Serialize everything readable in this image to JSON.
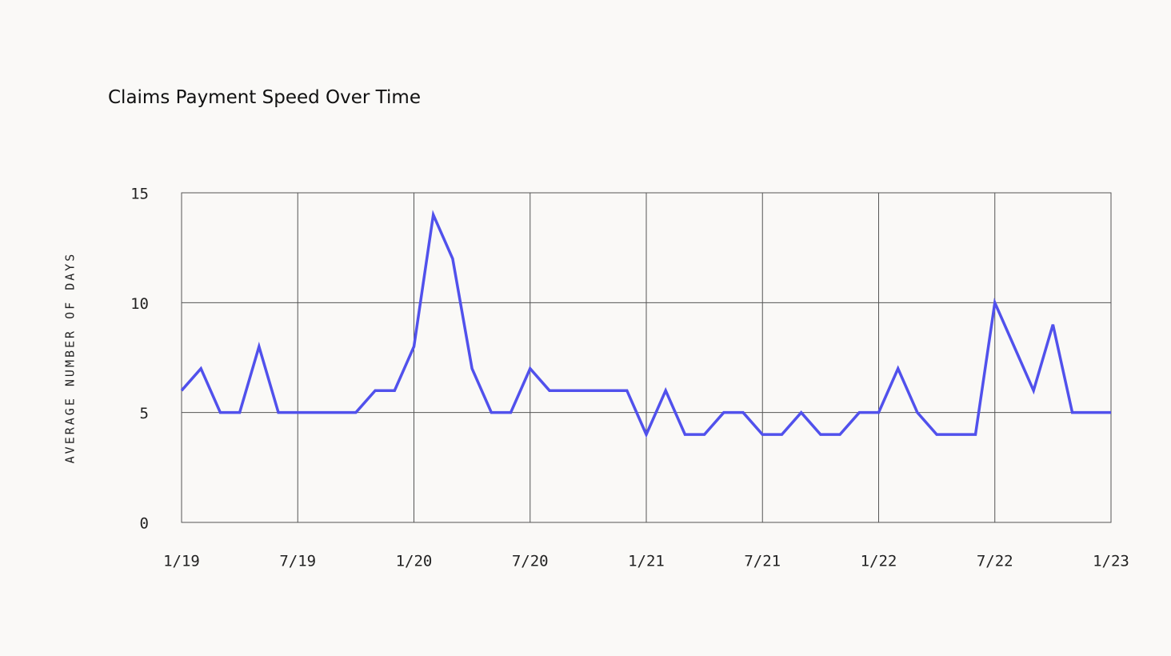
{
  "chart_data": {
    "type": "line",
    "title": "Claims Payment Speed Over Time",
    "y_label": "AVERAGE NUMBER OF DAYS",
    "categories": [
      "1/19",
      null,
      null,
      null,
      null,
      null,
      "7/19",
      null,
      null,
      null,
      null,
      null,
      "1/20",
      null,
      null,
      null,
      null,
      null,
      "7/20",
      null,
      null,
      null,
      null,
      null,
      "1/21",
      null,
      null,
      null,
      null,
      null,
      "7/21",
      null,
      null,
      null,
      null,
      null,
      "1/22",
      null,
      null,
      null,
      null,
      null,
      "7/22",
      null,
      null,
      null,
      null,
      null,
      "1/23"
    ],
    "series": [
      {
        "name": "Average number of days",
        "color": "#5151ec",
        "values": [
          6,
          7,
          5,
          5,
          8,
          5,
          5,
          5,
          5,
          5,
          6,
          6,
          8,
          14,
          12,
          7,
          5,
          5,
          7,
          6,
          6,
          6,
          6,
          6,
          4,
          6,
          4,
          4,
          5,
          5,
          4,
          4,
          5,
          4,
          4,
          5,
          5,
          7,
          5,
          4,
          4,
          4,
          10,
          8,
          6,
          9,
          5,
          5,
          5
        ]
      }
    ],
    "ylim": [
      0,
      15
    ],
    "yticks": [
      0,
      5,
      10,
      15
    ],
    "grid": true
  }
}
